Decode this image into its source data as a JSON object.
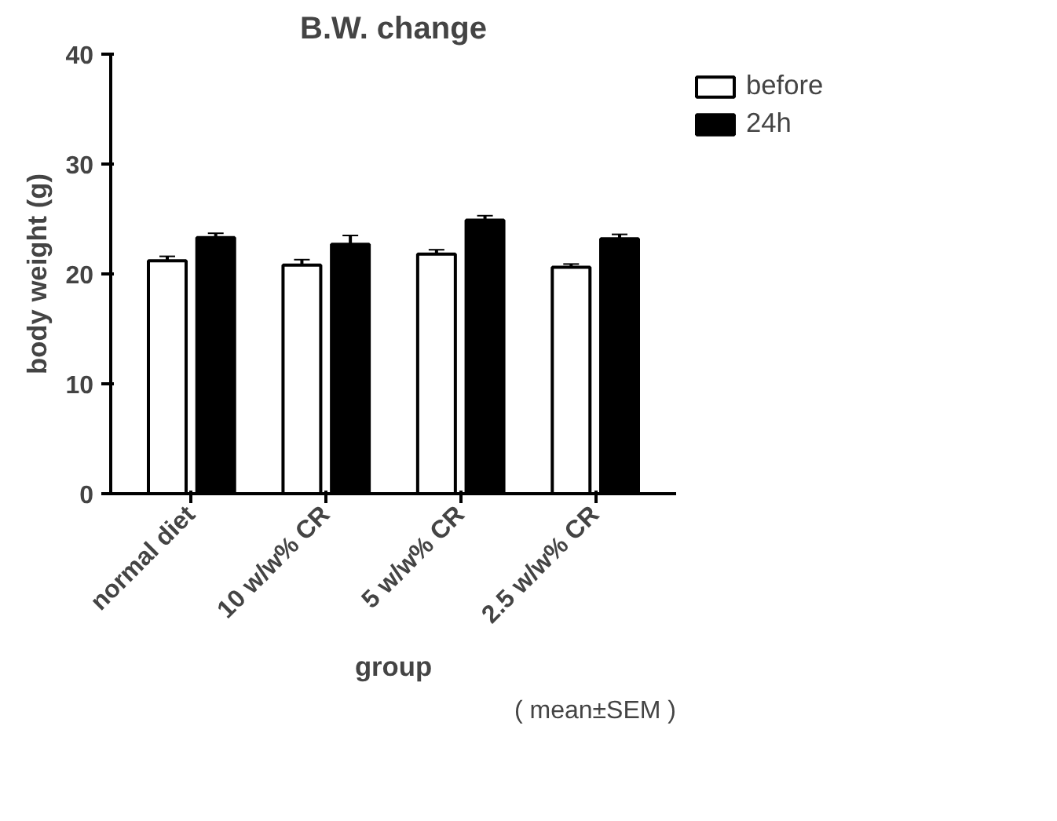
{
  "chart_data": {
    "type": "bar",
    "title": "B.W. change",
    "xlabel": "group",
    "ylabel": "body weight (g)",
    "annotations": [
      "( mean±SEM )"
    ],
    "categories": [
      "normal diet",
      "10 w/w% CR",
      "5 w/w% CR",
      "2.5 w/w% CR"
    ],
    "series": [
      {
        "name": "before",
        "color": "#ffffff",
        "values": [
          21.2,
          20.8,
          21.8,
          20.6
        ],
        "errors": [
          0.4,
          0.5,
          0.4,
          0.3
        ]
      },
      {
        "name": "24h",
        "color": "#000000",
        "values": [
          23.3,
          22.7,
          24.9,
          23.2
        ],
        "errors": [
          0.4,
          0.8,
          0.4,
          0.4
        ]
      }
    ],
    "ylim": [
      0,
      40
    ],
    "yticks": [
      0,
      10,
      20,
      30,
      40
    ],
    "grid": false,
    "legend": "top right"
  }
}
